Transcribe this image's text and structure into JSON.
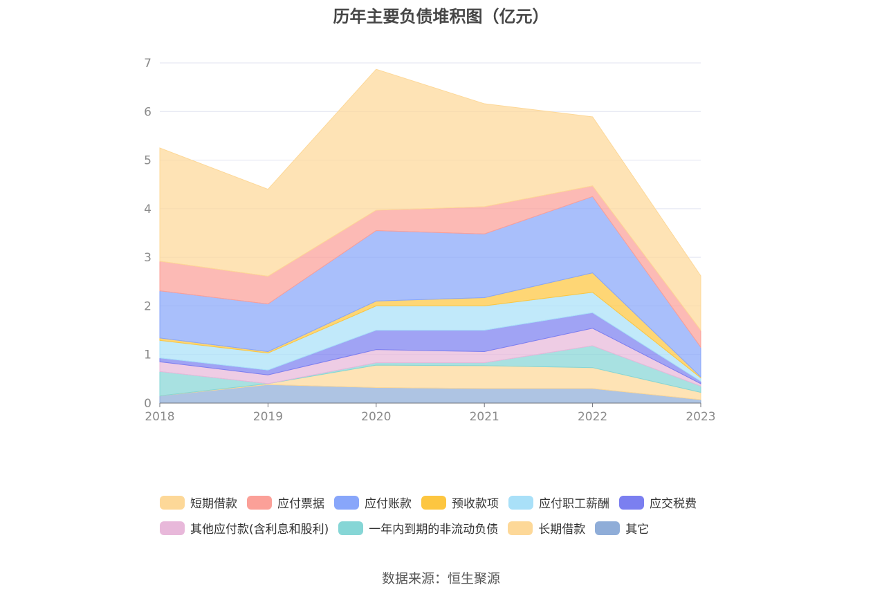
{
  "chart_data": {
    "type": "area",
    "stacked": true,
    "title": "历年主要负债堆积图（亿元）",
    "categories": [
      "2018",
      "2019",
      "2020",
      "2021",
      "2022",
      "2023"
    ],
    "ylim": [
      0,
      7
    ],
    "yticks": [
      "0",
      "1",
      "2",
      "3",
      "4",
      "5",
      "6",
      "7"
    ],
    "grid": true,
    "legend_position": "bottom",
    "series": [
      {
        "name": "其它",
        "color": "#8fadd8",
        "values": [
          0.15,
          0.38,
          0.32,
          0.3,
          0.3,
          0.07
        ]
      },
      {
        "name": "长期借款",
        "color": "#fdd898",
        "values": [
          0,
          0.02,
          0.46,
          0.47,
          0.43,
          0.15
        ]
      },
      {
        "name": "一年内到期的非流动负债",
        "color": "#86d6d6",
        "values": [
          0.5,
          0.0,
          0.05,
          0.06,
          0.45,
          0.13
        ]
      },
      {
        "name": "其他应付款(含利息和股利)",
        "color": "#e8b8da",
        "values": [
          0.2,
          0.18,
          0.27,
          0.23,
          0.36,
          0.05
        ]
      },
      {
        "name": "应交税费",
        "color": "#7b7ff0",
        "values": [
          0.08,
          0.1,
          0.4,
          0.44,
          0.32,
          0.05
        ]
      },
      {
        "name": "应付职工薪酬",
        "color": "#a9e0f8",
        "values": [
          0.36,
          0.35,
          0.5,
          0.5,
          0.42,
          0.07
        ]
      },
      {
        "name": "预收款项",
        "color": "#fdc640",
        "values": [
          0.05,
          0.03,
          0.1,
          0.17,
          0.4,
          0.02
        ]
      },
      {
        "name": "应付账款",
        "color": "#88a6fa",
        "values": [
          0.97,
          0.98,
          1.45,
          1.31,
          1.57,
          0.61
        ]
      },
      {
        "name": "应付票据",
        "color": "#fba098",
        "values": [
          0.61,
          0.57,
          0.42,
          0.56,
          0.22,
          0.35
        ]
      },
      {
        "name": "短期借款",
        "color": "#fdd898",
        "values": [
          2.33,
          1.79,
          2.9,
          2.12,
          1.42,
          1.12
        ]
      }
    ]
  },
  "legend": {
    "row1": [
      {
        "label": "短期借款",
        "color": "#fdd898"
      },
      {
        "label": "应付票据",
        "color": "#fba098"
      },
      {
        "label": "应付账款",
        "color": "#88a6fa"
      },
      {
        "label": "预收款项",
        "color": "#fdc640"
      },
      {
        "label": "应付职工薪酬",
        "color": "#a9e0f8"
      },
      {
        "label": "应交税费",
        "color": "#7b7ff0"
      }
    ],
    "row2": [
      {
        "label": "其他应付款(含利息和股利)",
        "color": "#e8b8da"
      },
      {
        "label": "一年内到期的非流动负债",
        "color": "#86d6d6"
      },
      {
        "label": "长期借款",
        "color": "#fdd898"
      },
      {
        "label": "其它",
        "color": "#8fadd8"
      }
    ]
  },
  "source": "数据来源：恒生聚源"
}
